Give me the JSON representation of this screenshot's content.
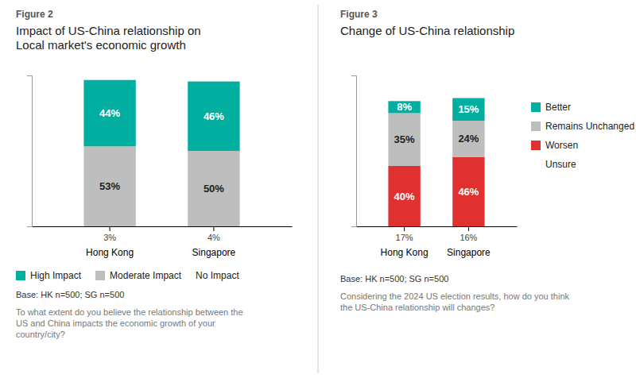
{
  "chart_data": [
    {
      "type": "bar",
      "stacked": true,
      "data_labels": true,
      "legend": "bottom",
      "tick_labels": "x",
      "subtitle": "Figure 2",
      "title": "Impact of US-China relationship on\nLocal market's economic growth",
      "categories": [
        "Hong Kong",
        "Singapore"
      ],
      "ylim": [
        0,
        100
      ],
      "series": [
        {
          "name": "High Impact",
          "color": "#00AFA0",
          "values": [
            44,
            46
          ],
          "value_labels": [
            "44%",
            "46%"
          ]
        },
        {
          "name": "Moderate Impact",
          "color": "#BEBEBE",
          "values": [
            53,
            50
          ],
          "value_labels": [
            "53%",
            "50%"
          ]
        },
        {
          "name": "No Impact",
          "type": "text",
          "values": [
            3,
            4
          ],
          "value_labels": [
            "3%",
            "4%"
          ]
        }
      ],
      "annotations": [
        "Base: HK n=500; SG n=500",
        "To what extent do you believe the relationship between the\nUS and China impacts the economic growth of your\ncountry/city?"
      ]
    },
    {
      "type": "bar",
      "stacked": true,
      "data_labels": true,
      "legend": "right",
      "tick_labels": "x",
      "subtitle": "Figure 3",
      "title": "Change of US-China relationship",
      "categories": [
        "Hong Kong",
        "Singapore"
      ],
      "ylim": [
        0,
        100
      ],
      "series": [
        {
          "name": "Better",
          "color": "#00AFA0",
          "values": [
            8,
            15
          ],
          "value_labels": [
            "8%",
            "15%"
          ]
        },
        {
          "name": "Remains Unchanged",
          "color": "#BEBEBE",
          "values": [
            35,
            24
          ],
          "value_labels": [
            "35%",
            "24%"
          ]
        },
        {
          "name": "Worsen",
          "color": "#E03030",
          "values": [
            40,
            46
          ],
          "value_labels": [
            "40%",
            "46%"
          ]
        },
        {
          "name": "Unsure",
          "type": "text",
          "values": [
            17,
            16
          ],
          "value_labels": [
            "17%",
            "16%"
          ]
        }
      ],
      "annotations": [
        "Base: HK n=500; SG n=500",
        "Considering the 2024 US election results, how do you think\nthe US-China relationship will changes?"
      ]
    }
  ]
}
